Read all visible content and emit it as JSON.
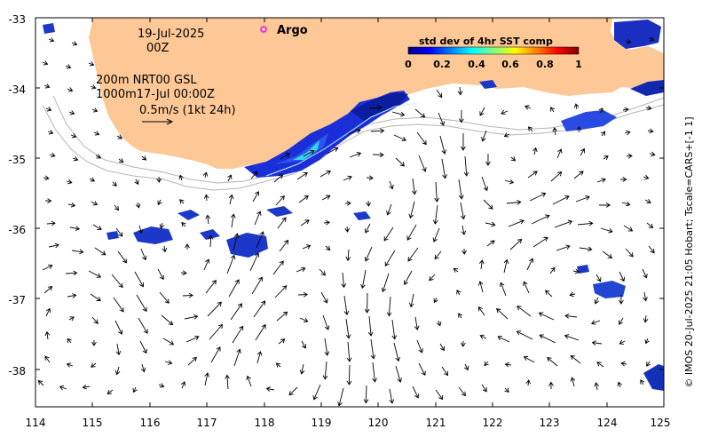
{
  "map": {
    "date_line": "19-Jul-2025",
    "time_line": "00Z",
    "argo_label": "Argo",
    "depth_line1": "200m  NRT00 GSL",
    "depth_line2": "1000m17-Jul 00:00Z",
    "scale_label": "0.5m/s (1kt 24h)",
    "copyright": "© IMOS 20-Jul-2025 21:05 Hobart; Tscale=CARS+[-1 1]"
  },
  "colorbar": {
    "title": "std dev of 4hr SST comp",
    "tick_labels": [
      "0",
      "0.2",
      "0.4",
      "0.6",
      "0.8",
      "1"
    ]
  },
  "axes": {
    "x_ticks": [
      "114",
      "115",
      "116",
      "117",
      "118",
      "119",
      "120",
      "121",
      "122",
      "123",
      "124",
      "125"
    ],
    "y_ticks": [
      "-33",
      "-34",
      "-35",
      "-36",
      "-37",
      "-38"
    ]
  },
  "colors": {
    "land": "#fdc896",
    "argo_marker": "#ff00ff",
    "sst_low": "#00007f",
    "sst_high": "#7f0000"
  }
}
